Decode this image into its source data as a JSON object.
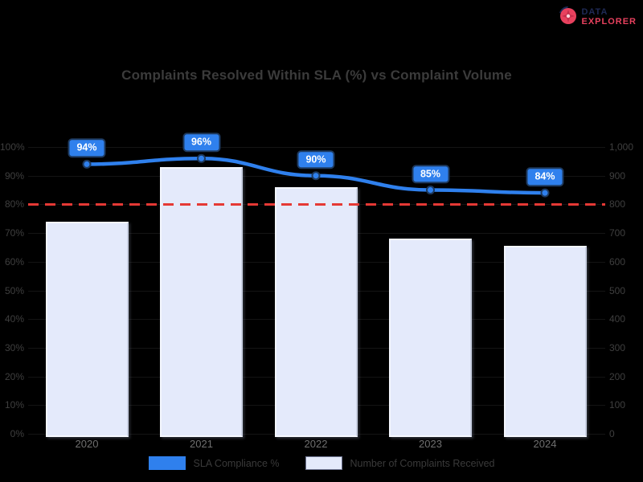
{
  "page": {
    "background": "#000000"
  },
  "logo": {
    "icon": "compass-badge-icon",
    "line1": "DATA",
    "line2": "EXPLORER",
    "navy": "#1f2a56",
    "pink": "#e8415e"
  },
  "chart_data": {
    "type": "combo",
    "title": "Complaints Resolved Within SLA (%) vs Complaint Volume",
    "categories": [
      "2020",
      "2021",
      "2022",
      "2023",
      "2024"
    ],
    "series": [
      {
        "name": "SLA Compliance %",
        "type": "line",
        "axis": "left",
        "values": [
          94,
          96,
          90,
          85,
          84
        ],
        "point_labels": [
          "94%",
          "96%",
          "90%",
          "85%",
          "84%"
        ],
        "color": "#2f80ed"
      },
      {
        "name": "Number of Complaints Received",
        "type": "bar",
        "axis": "right",
        "values": [
          740,
          930,
          860,
          680,
          655
        ],
        "color": "#e4eafb"
      }
    ],
    "target_line": {
      "value": 80,
      "label": "",
      "color": "#e53935",
      "style": "dashed"
    },
    "left_axis": {
      "min": 0,
      "max": 100,
      "step": 10,
      "suffix": "%"
    },
    "right_axis": {
      "min": 0,
      "max": 1000,
      "step": 100
    },
    "grid": "horizontal",
    "legend_position": "bottom",
    "colors": {
      "line": "#2f80ed",
      "bubble_border": "#1e3a5f",
      "bar_fill": "#e4eafb",
      "target": "#e53935",
      "title_text": "#3b3b3b",
      "axis_text": "#3f3f3f",
      "x_axis_text": "#6f6f6f",
      "background": "#000000"
    }
  }
}
